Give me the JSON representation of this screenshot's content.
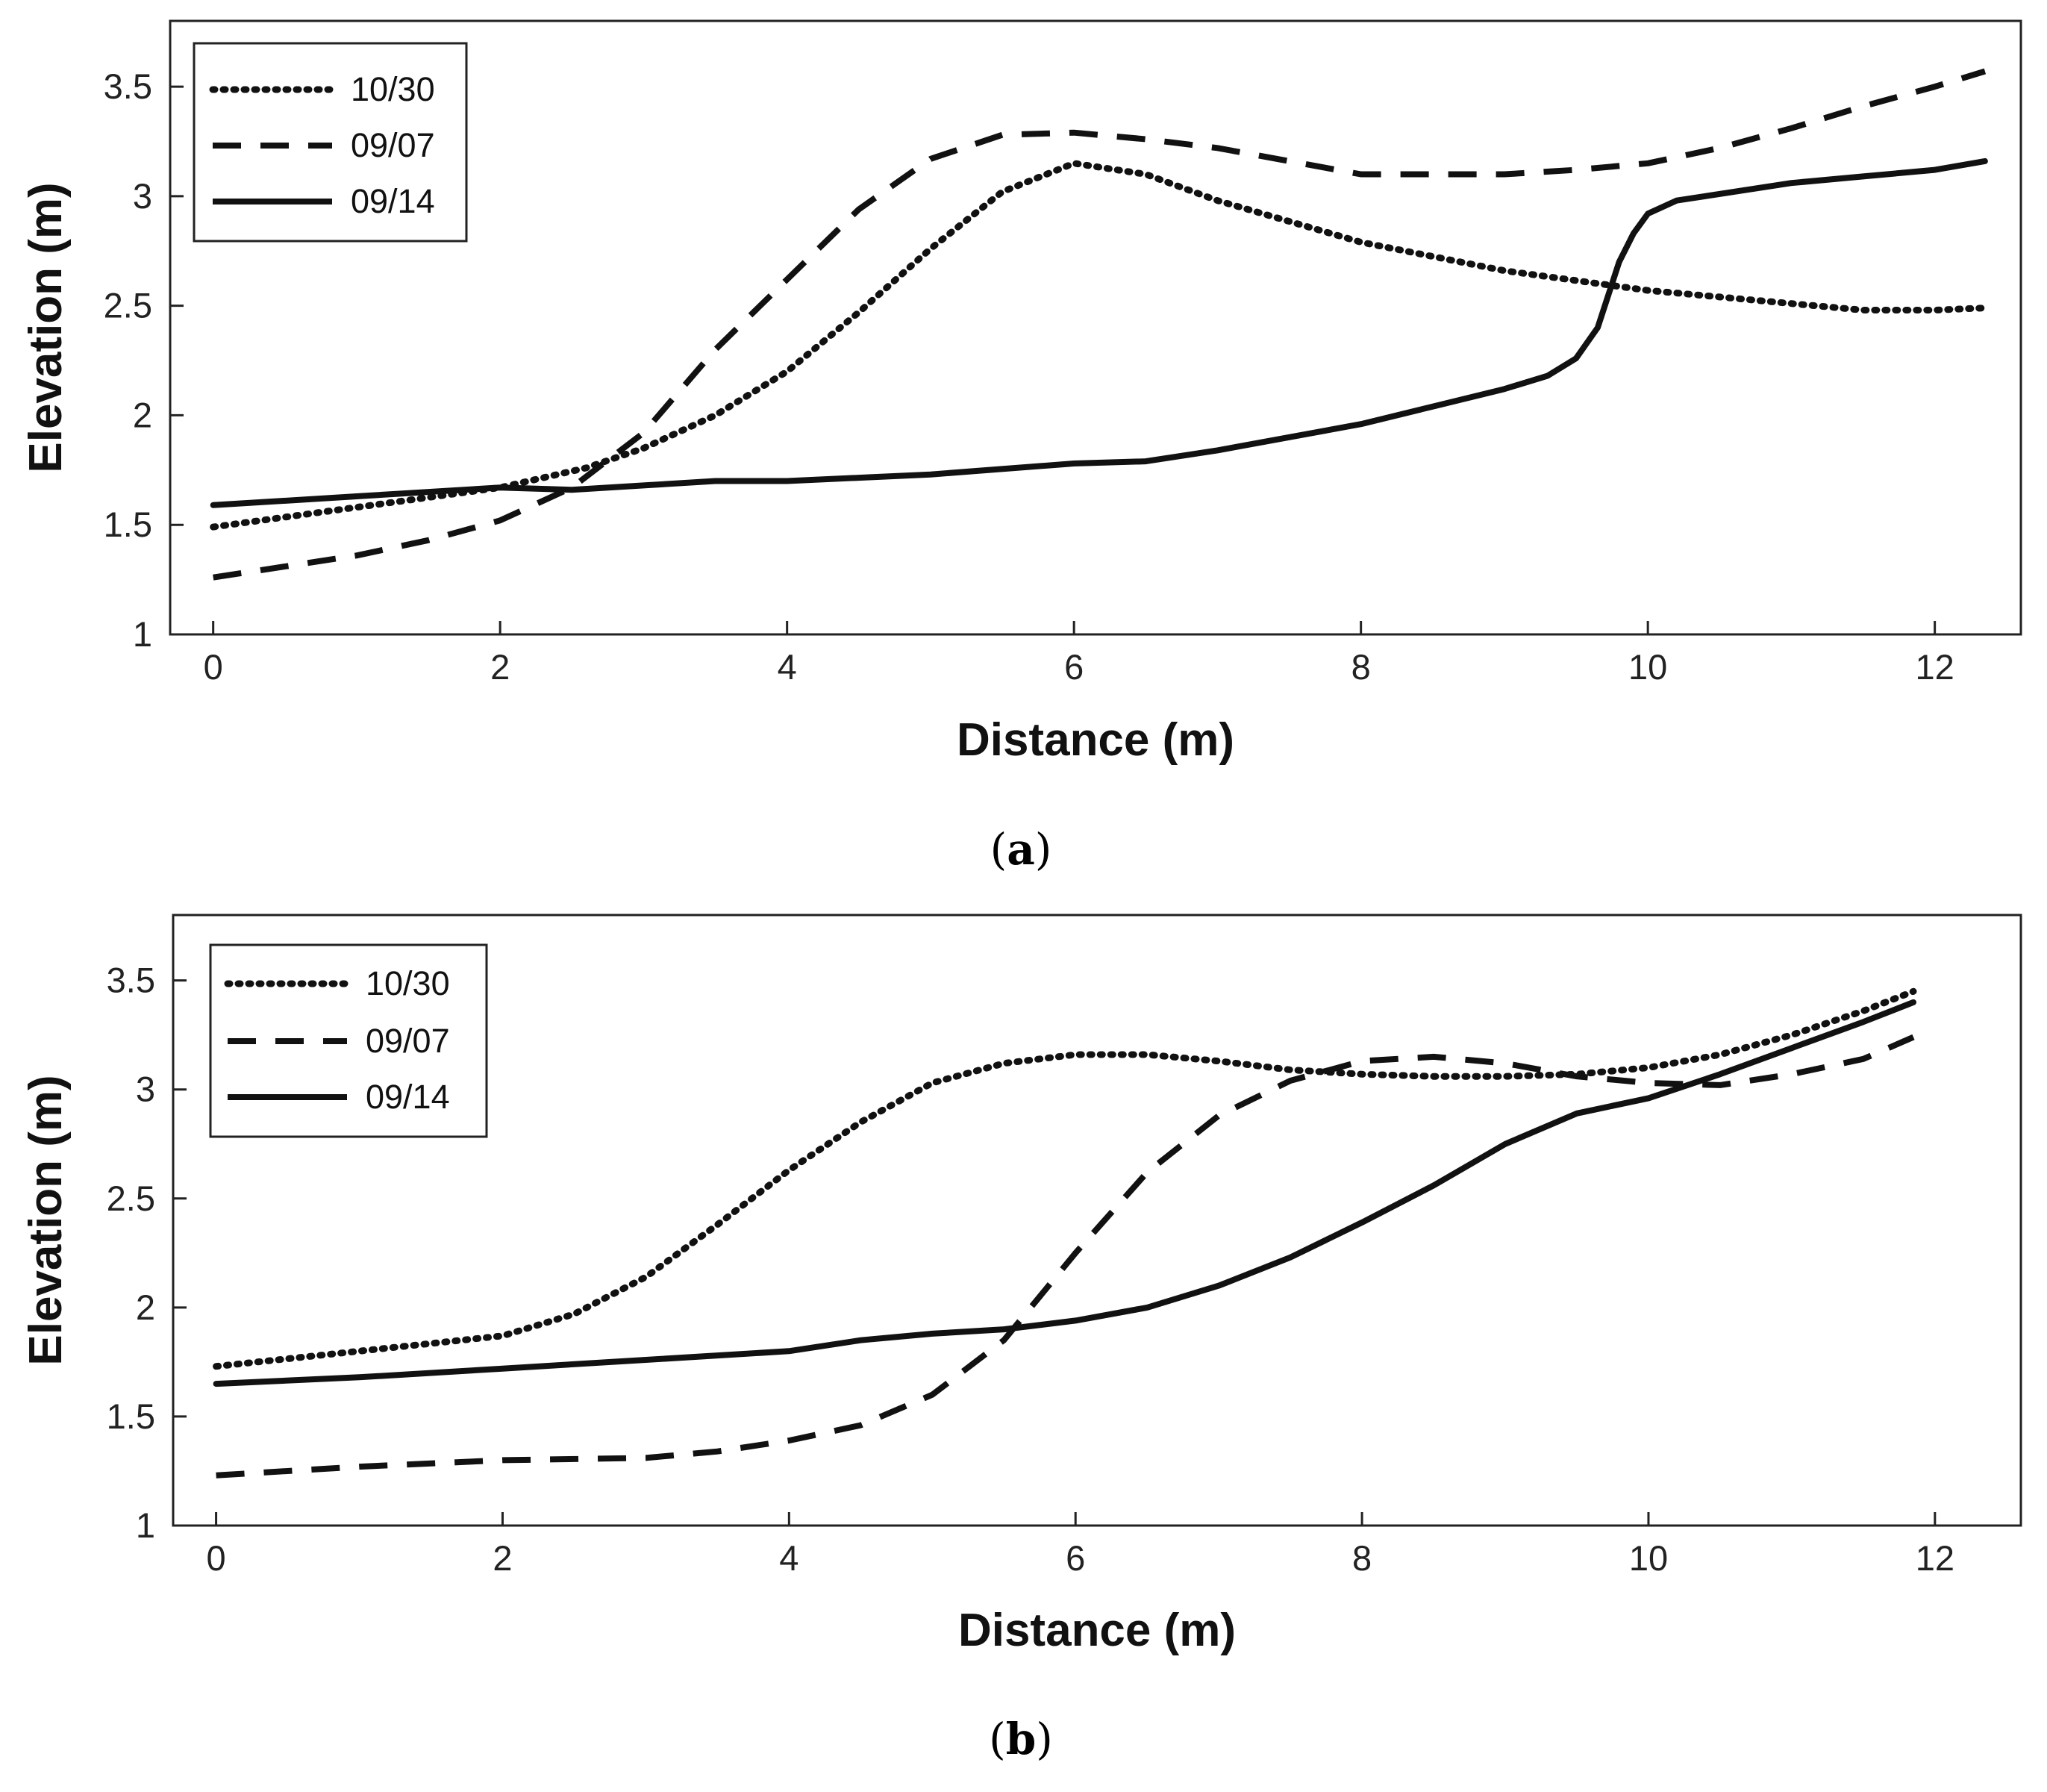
{
  "chart_data": [
    {
      "type": "line",
      "caption_letter": "a",
      "xlabel": "Distance (m)",
      "ylabel": "Elevation (m)",
      "xlim": [
        -0.3,
        12.6
      ],
      "ylim": [
        1,
        3.8
      ],
      "xticks": [
        0,
        2,
        4,
        6,
        8,
        10,
        12
      ],
      "xtick_labels": [
        "0",
        "2",
        "4",
        "6",
        "8",
        "10",
        "12"
      ],
      "yticks": [
        1,
        1.5,
        2,
        2.5,
        3,
        3.5
      ],
      "ytick_labels": [
        "1",
        "1.5",
        "2",
        "2.5",
        "3",
        "3.5"
      ],
      "grid": false,
      "legend_position": "top-left",
      "series": [
        {
          "name": "10/30",
          "style": "dotted",
          "x": [
            0,
            1,
            2,
            2.6,
            3,
            3.5,
            4,
            4.5,
            5,
            5.5,
            6,
            6.5,
            7,
            8,
            9,
            10,
            10.5,
            11,
            11.5,
            12,
            12.35
          ],
          "y": [
            1.49,
            1.58,
            1.67,
            1.76,
            1.85,
            2.0,
            2.2,
            2.47,
            2.76,
            3.02,
            3.15,
            3.1,
            2.98,
            2.79,
            2.66,
            2.57,
            2.54,
            2.51,
            2.48,
            2.48,
            2.49
          ]
        },
        {
          "name": "09/07",
          "style": "dashed",
          "x": [
            0,
            1,
            1.5,
            2,
            2.5,
            3,
            3.5,
            4,
            4.5,
            5,
            5.5,
            6,
            6.5,
            7,
            8,
            9,
            9.5,
            10,
            10.5,
            11,
            11.5,
            12,
            12.35
          ],
          "y": [
            1.26,
            1.36,
            1.43,
            1.52,
            1.67,
            1.92,
            2.3,
            2.62,
            2.94,
            3.17,
            3.28,
            3.29,
            3.26,
            3.22,
            3.1,
            3.1,
            3.12,
            3.15,
            3.22,
            3.31,
            3.41,
            3.5,
            3.57
          ]
        },
        {
          "name": "09/14",
          "style": "solid",
          "x": [
            0,
            1,
            2,
            2.5,
            3,
            3.5,
            4,
            5,
            6,
            6.5,
            7,
            8,
            8.5,
            9,
            9.3,
            9.5,
            9.65,
            9.8,
            9.9,
            10,
            10.2,
            11,
            11.5,
            12,
            12.35
          ],
          "y": [
            1.59,
            1.63,
            1.67,
            1.66,
            1.68,
            1.7,
            1.7,
            1.73,
            1.78,
            1.79,
            1.84,
            1.96,
            2.04,
            2.12,
            2.18,
            2.26,
            2.4,
            2.7,
            2.83,
            2.92,
            2.98,
            3.06,
            3.09,
            3.12,
            3.16
          ]
        }
      ]
    },
    {
      "type": "line",
      "caption_letter": "b",
      "xlabel": "Distance (m)",
      "ylabel": "Elevation (m)",
      "xlim": [
        -0.3,
        12.6
      ],
      "ylim": [
        1,
        3.8
      ],
      "xticks": [
        0,
        2,
        4,
        6,
        8,
        10,
        12
      ],
      "xtick_labels": [
        "0",
        "2",
        "4",
        "6",
        "8",
        "10",
        "12"
      ],
      "yticks": [
        1,
        1.5,
        2,
        2.5,
        3,
        3.5
      ],
      "ytick_labels": [
        "1",
        "1.5",
        "2",
        "2.5",
        "3",
        "3.5"
      ],
      "grid": false,
      "legend_position": "top-left",
      "series": [
        {
          "name": "10/30",
          "style": "dotted",
          "x": [
            0,
            1,
            2,
            2.5,
            3,
            3.5,
            4,
            4.5,
            5,
            5.5,
            6,
            6.5,
            7,
            7.5,
            8,
            8.5,
            9,
            9.5,
            10,
            10.5,
            11,
            11.5,
            11.85
          ],
          "y": [
            1.73,
            1.8,
            1.87,
            1.97,
            2.14,
            2.38,
            2.63,
            2.85,
            3.03,
            3.12,
            3.16,
            3.16,
            3.13,
            3.09,
            3.07,
            3.06,
            3.06,
            3.07,
            3.1,
            3.16,
            3.25,
            3.36,
            3.45
          ]
        },
        {
          "name": "09/07",
          "style": "dashed",
          "x": [
            0,
            1,
            2,
            3,
            3.5,
            4,
            4.5,
            5,
            5.5,
            6,
            6.5,
            7,
            7.5,
            8,
            8.5,
            9,
            9.5,
            10,
            10.5,
            11,
            11.5,
            11.85
          ],
          "y": [
            1.23,
            1.27,
            1.3,
            1.31,
            1.34,
            1.39,
            1.46,
            1.6,
            1.85,
            2.25,
            2.62,
            2.88,
            3.04,
            3.13,
            3.15,
            3.12,
            3.06,
            3.03,
            3.02,
            3.07,
            3.14,
            3.24
          ]
        },
        {
          "name": "09/14",
          "style": "solid",
          "x": [
            0,
            1,
            2,
            3,
            4,
            4.5,
            5,
            5.5,
            6,
            6.5,
            7,
            7.5,
            8,
            8.5,
            9,
            9.5,
            10,
            10.5,
            11,
            11.5,
            11.85
          ],
          "y": [
            1.65,
            1.68,
            1.72,
            1.76,
            1.8,
            1.85,
            1.88,
            1.9,
            1.94,
            2.0,
            2.1,
            2.23,
            2.39,
            2.56,
            2.75,
            2.89,
            2.96,
            3.07,
            3.19,
            3.31,
            3.4
          ]
        }
      ]
    }
  ]
}
